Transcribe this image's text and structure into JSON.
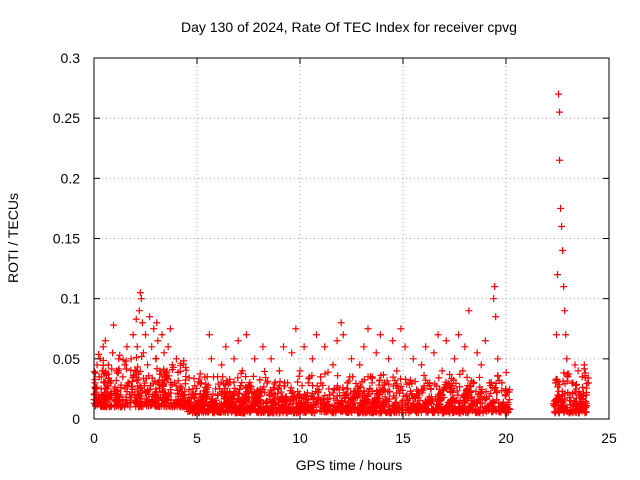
{
  "chart_data": {
    "type": "scatter",
    "title": "Day 130 of 2024, Rate Of TEC Index for receiver cpvg",
    "xlabel": "GPS time / hours",
    "ylabel": "ROTI / TECUs",
    "xlim": [
      0,
      25
    ],
    "ylim": [
      0,
      0.3
    ],
    "xticks": [
      0,
      5,
      10,
      15,
      20,
      25
    ],
    "xtick_labels": [
      "0",
      "5",
      "10",
      "15",
      "20",
      "25"
    ],
    "yticks": [
      0,
      0.05,
      0.1,
      0.15,
      0.2,
      0.25,
      0.3
    ],
    "ytick_labels": [
      "0",
      "0.05",
      "0.1",
      "0.15",
      "0.2",
      "0.25",
      "0.3"
    ],
    "grid": true,
    "marker": "+",
    "series": [
      {
        "color": "#ff0000",
        "points": [
          [
            0.05,
            0.03
          ],
          [
            0.1,
            0.02
          ],
          [
            0.15,
            0.045
          ],
          [
            0.2,
            0.015
          ],
          [
            0.25,
            0.035
          ],
          [
            0.3,
            0.05
          ],
          [
            0.35,
            0.025
          ],
          [
            0.4,
            0.04
          ],
          [
            0.45,
            0.06
          ],
          [
            0.5,
            0.03
          ],
          [
            0.55,
            0.065
          ],
          [
            0.6,
            0.02
          ],
          [
            0.7,
            0.045
          ],
          [
            0.8,
            0.03
          ],
          [
            0.9,
            0.055
          ],
          [
            0.95,
            0.078
          ],
          [
            1.0,
            0.025
          ],
          [
            1.1,
            0.04
          ],
          [
            1.2,
            0.05
          ],
          [
            1.3,
            0.02
          ],
          [
            1.4,
            0.035
          ],
          [
            1.5,
            0.045
          ],
          [
            1.6,
            0.06
          ],
          [
            1.7,
            0.03
          ],
          [
            1.8,
            0.05
          ],
          [
            1.9,
            0.07
          ],
          [
            2.0,
            0.04
          ],
          [
            2.05,
            0.083
          ],
          [
            2.1,
            0.06
          ],
          [
            2.2,
            0.09
          ],
          [
            2.25,
            0.105
          ],
          [
            2.3,
            0.1
          ],
          [
            2.35,
            0.08
          ],
          [
            2.4,
            0.055
          ],
          [
            2.5,
            0.07
          ],
          [
            2.6,
            0.045
          ],
          [
            2.7,
            0.085
          ],
          [
            2.8,
            0.06
          ],
          [
            2.9,
            0.075
          ],
          [
            3.0,
            0.05
          ],
          [
            3.05,
            0.08
          ],
          [
            3.1,
            0.065
          ],
          [
            3.2,
            0.04
          ],
          [
            3.3,
            0.07
          ],
          [
            3.4,
            0.055
          ],
          [
            3.5,
            0.035
          ],
          [
            3.6,
            0.06
          ],
          [
            3.7,
            0.075
          ],
          [
            3.8,
            0.045
          ],
          [
            3.9,
            0.03
          ],
          [
            4.0,
            0.05
          ],
          [
            4.2,
            0.015
          ],
          [
            4.4,
            0.02
          ],
          [
            4.6,
            0.01
          ],
          [
            4.8,
            0.025
          ],
          [
            5.0,
            0.015
          ],
          [
            5.2,
            0.03
          ],
          [
            5.4,
            0.02
          ],
          [
            5.6,
            0.07
          ],
          [
            5.7,
            0.05
          ],
          [
            5.8,
            0.035
          ],
          [
            6.0,
            0.02
          ],
          [
            6.2,
            0.045
          ],
          [
            6.4,
            0.06
          ],
          [
            6.6,
            0.03
          ],
          [
            6.8,
            0.05
          ],
          [
            7.0,
            0.065
          ],
          [
            7.2,
            0.04
          ],
          [
            7.4,
            0.07
          ],
          [
            7.6,
            0.025
          ],
          [
            7.8,
            0.05
          ],
          [
            8.0,
            0.015
          ],
          [
            8.2,
            0.06
          ],
          [
            8.4,
            0.03
          ],
          [
            8.6,
            0.05
          ],
          [
            8.8,
            0.02
          ],
          [
            9.0,
            0.04
          ],
          [
            9.2,
            0.06
          ],
          [
            9.4,
            0.03
          ],
          [
            9.6,
            0.055
          ],
          [
            9.8,
            0.075
          ],
          [
            10.0,
            0.04
          ],
          [
            10.2,
            0.06
          ],
          [
            10.4,
            0.03
          ],
          [
            10.6,
            0.05
          ],
          [
            10.8,
            0.07
          ],
          [
            11.0,
            0.035
          ],
          [
            11.2,
            0.06
          ],
          [
            11.4,
            0.025
          ],
          [
            11.6,
            0.045
          ],
          [
            11.8,
            0.065
          ],
          [
            12.0,
            0.08
          ],
          [
            12.1,
            0.07
          ],
          [
            12.3,
            0.03
          ],
          [
            12.5,
            0.05
          ],
          [
            12.7,
            0.02
          ],
          [
            12.9,
            0.045
          ],
          [
            13.1,
            0.06
          ],
          [
            13.3,
            0.075
          ],
          [
            13.5,
            0.035
          ],
          [
            13.7,
            0.055
          ],
          [
            13.9,
            0.07
          ],
          [
            14.1,
            0.03
          ],
          [
            14.3,
            0.05
          ],
          [
            14.5,
            0.065
          ],
          [
            14.7,
            0.04
          ],
          [
            14.9,
            0.075
          ],
          [
            15.1,
            0.06
          ],
          [
            15.3,
            0.03
          ],
          [
            15.5,
            0.05
          ],
          [
            15.7,
            0.02
          ],
          [
            15.9,
            0.045
          ],
          [
            16.1,
            0.06
          ],
          [
            16.3,
            0.03
          ],
          [
            16.5,
            0.055
          ],
          [
            16.7,
            0.07
          ],
          [
            16.9,
            0.04
          ],
          [
            17.1,
            0.065
          ],
          [
            17.3,
            0.025
          ],
          [
            17.5,
            0.05
          ],
          [
            17.7,
            0.07
          ],
          [
            17.9,
            0.04
          ],
          [
            18.0,
            0.06
          ],
          [
            18.2,
            0.09
          ],
          [
            18.4,
            0.03
          ],
          [
            18.6,
            0.055
          ],
          [
            18.8,
            0.045
          ],
          [
            19.0,
            0.065
          ],
          [
            19.2,
            0.03
          ],
          [
            19.4,
            0.1
          ],
          [
            19.45,
            0.11
          ],
          [
            19.5,
            0.085
          ],
          [
            19.6,
            0.05
          ],
          [
            19.8,
            0.03
          ],
          [
            20.0,
            0.02
          ],
          [
            20.1,
            0.012
          ],
          [
            22.4,
            0.03
          ],
          [
            22.45,
            0.07
          ],
          [
            22.5,
            0.12
          ],
          [
            22.55,
            0.27
          ],
          [
            22.6,
            0.255
          ],
          [
            22.6,
            0.215
          ],
          [
            22.65,
            0.175
          ],
          [
            22.7,
            0.16
          ],
          [
            22.75,
            0.14
          ],
          [
            22.8,
            0.11
          ],
          [
            22.85,
            0.09
          ],
          [
            22.9,
            0.07
          ],
          [
            22.95,
            0.05
          ],
          [
            23.0,
            0.035
          ],
          [
            23.1,
            0.02
          ],
          [
            23.2,
            0.03
          ],
          [
            23.3,
            0.015
          ],
          [
            23.4,
            0.025
          ],
          [
            23.5,
            0.04
          ],
          [
            23.6,
            0.02
          ],
          [
            23.7,
            0.035
          ],
          [
            23.8,
            0.045
          ],
          [
            23.9,
            0.02
          ],
          [
            24.0,
            0.03
          ]
        ]
      }
    ],
    "density_bands": [
      {
        "x_from": 0,
        "x_to": 4.5,
        "y_low": 0.01,
        "y_high": 0.05
      },
      {
        "x_from": 4.5,
        "x_to": 20.2,
        "y_low": 0.005,
        "y_high": 0.035
      },
      {
        "x_from": 22.3,
        "x_to": 24.0,
        "y_low": 0.005,
        "y_high": 0.04
      }
    ]
  }
}
